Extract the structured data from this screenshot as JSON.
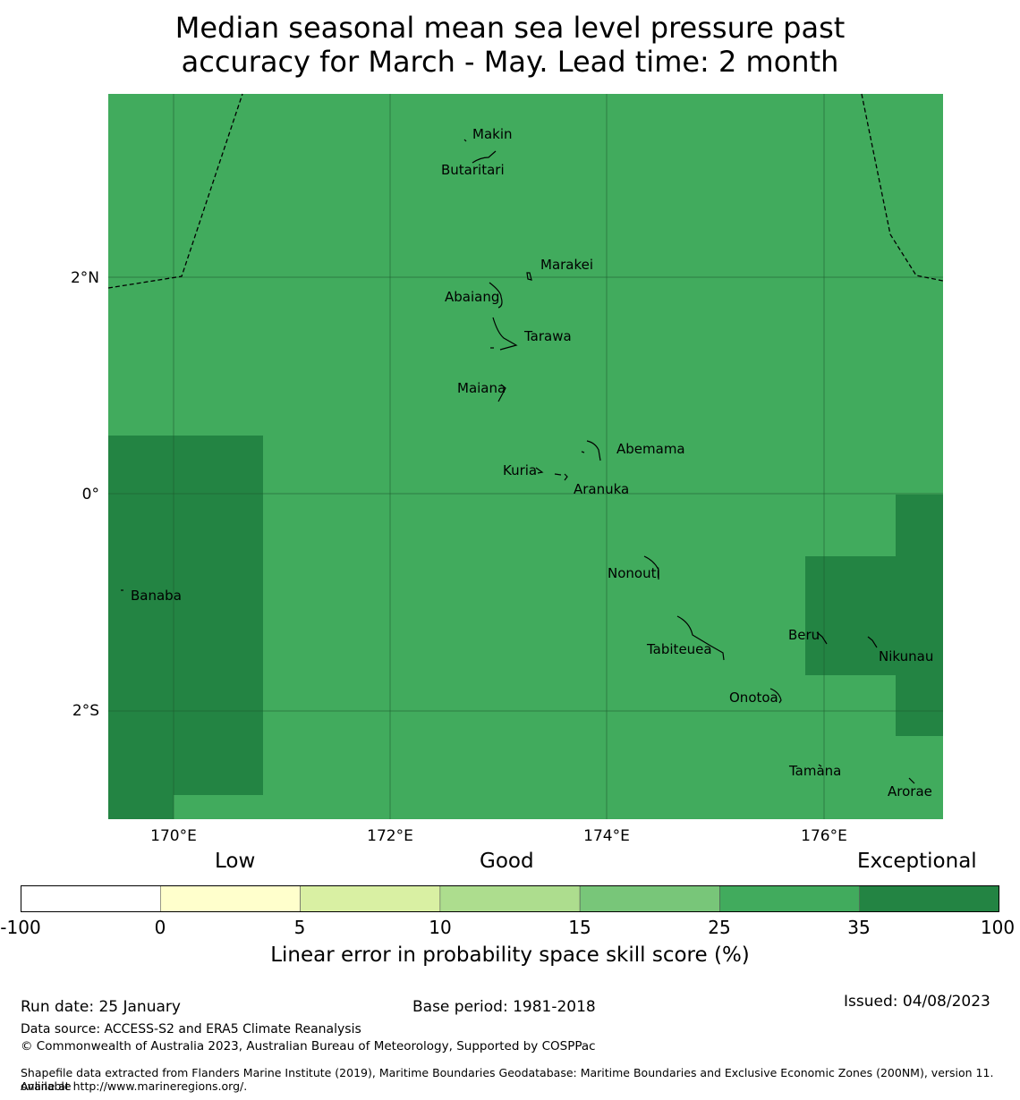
{
  "title_line1": "Median seasonal mean sea level pressure past",
  "title_line2": "accuracy for March - May. Lead time: 2 month",
  "map": {
    "background_color": "#41ab5d",
    "exceptional_color": "#238443",
    "lat_labels": [
      "2°N",
      "0°",
      "2°S"
    ],
    "lon_labels": [
      "170°E",
      "172°E",
      "174°E",
      "176°E"
    ],
    "places": [
      "Makin",
      "Butaritari",
      "Marakei",
      "Abaiang",
      "Tarawa",
      "Maiana",
      "Abemama",
      "Kuria",
      "Aranuka",
      "Banaba",
      "Nonouti",
      "Tabiteuea",
      "Beru",
      "Nikunau",
      "Onotoa",
      "Tamana",
      "Arorae"
    ]
  },
  "colorbar": {
    "categories": [
      "Low",
      "Good",
      "Exceptional"
    ],
    "colors": [
      "#ffffff",
      "#ffffcc",
      "#d9f0a3",
      "#addd8e",
      "#78c679",
      "#41ab5d",
      "#238443"
    ],
    "ticks": [
      "-100",
      "0",
      "5",
      "10",
      "15",
      "25",
      "35",
      "100"
    ],
    "label": "Linear error in probability space skill score (%)"
  },
  "footer": {
    "run_date": "Run date: 25 January",
    "base_period": "Base period: 1981-2018",
    "issued": "Issued: 04/08/2023",
    "data_source": "Data source: ACCESS-S2 and ERA5 Climate Reanalysis",
    "copyright": "© Commonwealth of Australia 2023, Australian Bureau of Meteorology, Supported by COSPPac",
    "shapefile_line1": "Shapefile data extracted from Flanders Marine Institute (2019), Maritime Boundaries Geodatabase: Maritime Boundaries and Exclusive Economic Zones (200NM), version 11. Available",
    "shapefile_line2": "online at http://www.marineregions.org/."
  }
}
